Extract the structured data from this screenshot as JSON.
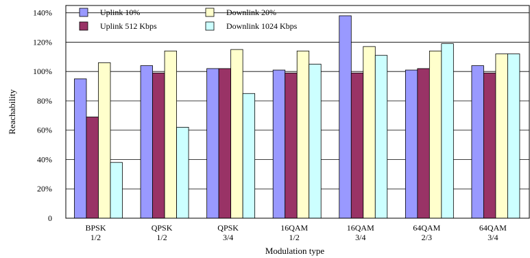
{
  "chart_data": {
    "type": "bar",
    "categories": [
      [
        "BPSK",
        "1/2"
      ],
      [
        "QPSK",
        "1/2"
      ],
      [
        "QPSK",
        "3/4"
      ],
      [
        "16QAM",
        "1/2"
      ],
      [
        "16QAM",
        "3/4"
      ],
      [
        "64QAM",
        "2/3"
      ],
      [
        "64QAM",
        "3/4"
      ]
    ],
    "series": [
      {
        "name": "Uplink 10%",
        "color": "#9999ff",
        "values": [
          95,
          104,
          102,
          101,
          138,
          101,
          104
        ]
      },
      {
        "name": "Uplink 512 Kbps",
        "color": "#993366",
        "values": [
          69,
          99,
          102,
          99,
          99,
          102,
          99
        ]
      },
      {
        "name": "Downlink 20%",
        "color": "#ffffcc",
        "values": [
          106,
          114,
          115,
          114,
          117,
          114,
          112
        ]
      },
      {
        "name": "Downlink 1024 Kbps",
        "color": "#ccffff",
        "values": [
          38,
          62,
          85,
          105,
          111,
          119,
          112
        ]
      }
    ],
    "xlabel": "Modulation type",
    "ylabel": "Reachability",
    "ylim": [
      0,
      145
    ],
    "yticks": [
      {
        "value": 0,
        "label": "0"
      },
      {
        "value": 20,
        "label": "20%"
      },
      {
        "value": 40,
        "label": "40%"
      },
      {
        "value": 60,
        "label": "60%"
      },
      {
        "value": 80,
        "label": "80%"
      },
      {
        "value": 100,
        "label": "100%"
      },
      {
        "value": 120,
        "label": "120%"
      },
      {
        "value": 140,
        "label": "140%"
      }
    ],
    "grid": true,
    "legend_position": "top-left"
  }
}
